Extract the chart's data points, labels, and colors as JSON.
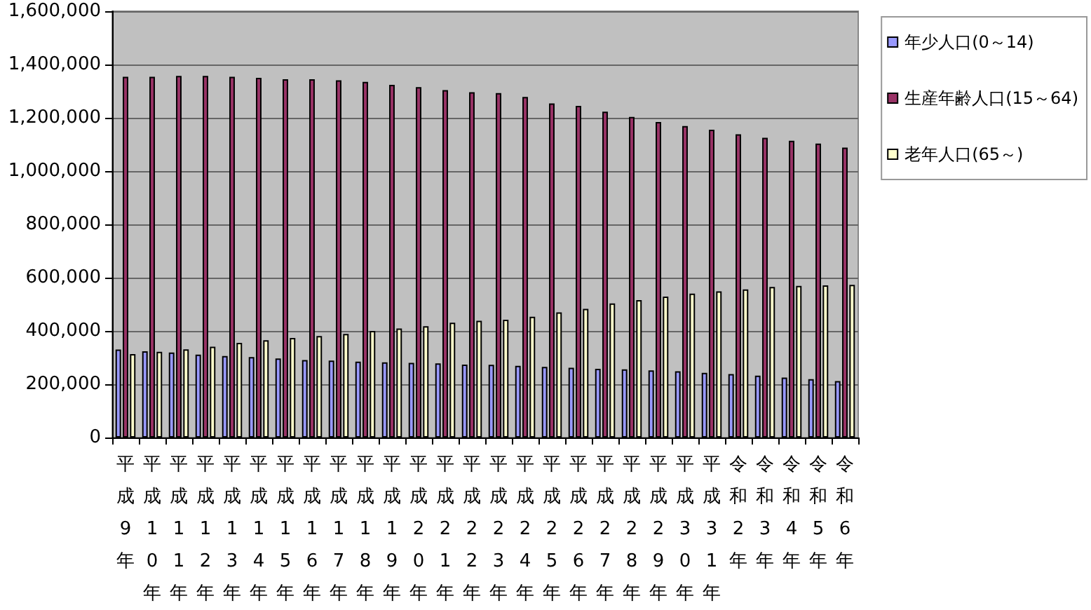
{
  "chart_data": {
    "type": "bar",
    "categories": [
      "平成9年",
      "平成10年",
      "平成11年",
      "平成12年",
      "平成13年",
      "平成14年",
      "平成15年",
      "平成16年",
      "平成17年",
      "平成18年",
      "平成19年",
      "平成20年",
      "平成21年",
      "平成22年",
      "平成23年",
      "平成24年",
      "平成25年",
      "平成26年",
      "平成27年",
      "平成28年",
      "平成29年",
      "平成30年",
      "平成31年",
      "令和2年",
      "令和3年",
      "令和4年",
      "令和5年",
      "令和6年"
    ],
    "series": [
      {
        "name": "年少人口(0～14)",
        "color": "#9999ff",
        "values": [
          330000,
          324000,
          319000,
          311000,
          306000,
          302000,
          297000,
          291000,
          289000,
          285000,
          282000,
          280000,
          278000,
          274000,
          273000,
          269000,
          265000,
          262000,
          258000,
          256000,
          252000,
          249000,
          243000,
          238000,
          232000,
          225000,
          219000,
          212000
        ]
      },
      {
        "name": "生産年齢人口(15～64)",
        "color": "#993366",
        "values": [
          1354000,
          1354000,
          1357000,
          1357000,
          1354000,
          1350000,
          1345000,
          1345000,
          1341000,
          1335000,
          1324000,
          1315000,
          1304000,
          1296000,
          1293000,
          1278000,
          1254000,
          1245000,
          1223000,
          1203000,
          1184000,
          1169000,
          1155000,
          1138000,
          1125000,
          1114000,
          1103000,
          1088000
        ]
      },
      {
        "name": "老年人口(65～)",
        "color": "#ffffcc",
        "values": [
          313000,
          322000,
          331000,
          341000,
          355000,
          365000,
          374000,
          381000,
          389000,
          400000,
          409000,
          418000,
          431000,
          438000,
          442000,
          453000,
          470000,
          483000,
          503000,
          516000,
          529000,
          540000,
          549000,
          556000,
          565000,
          569000,
          571000,
          573000
        ]
      }
    ],
    "ylim": [
      0,
      1600000
    ],
    "yticks": [
      0,
      {
        "value": 200000,
        "label": "200,000"
      },
      {
        "value": 400000,
        "label": "400,000"
      },
      {
        "value": 600000,
        "label": "600,000"
      },
      {
        "value": 800000,
        "label": "800,000"
      },
      {
        "value": 1000000,
        "label": "1,000,000"
      },
      {
        "value": 1200000,
        "label": "1,200,000"
      },
      {
        "value": 1400000,
        "label": "1,400,000"
      },
      {
        "value": 1600000,
        "label": "1,600,000"
      }
    ],
    "grid": "y",
    "legend": "top right"
  }
}
